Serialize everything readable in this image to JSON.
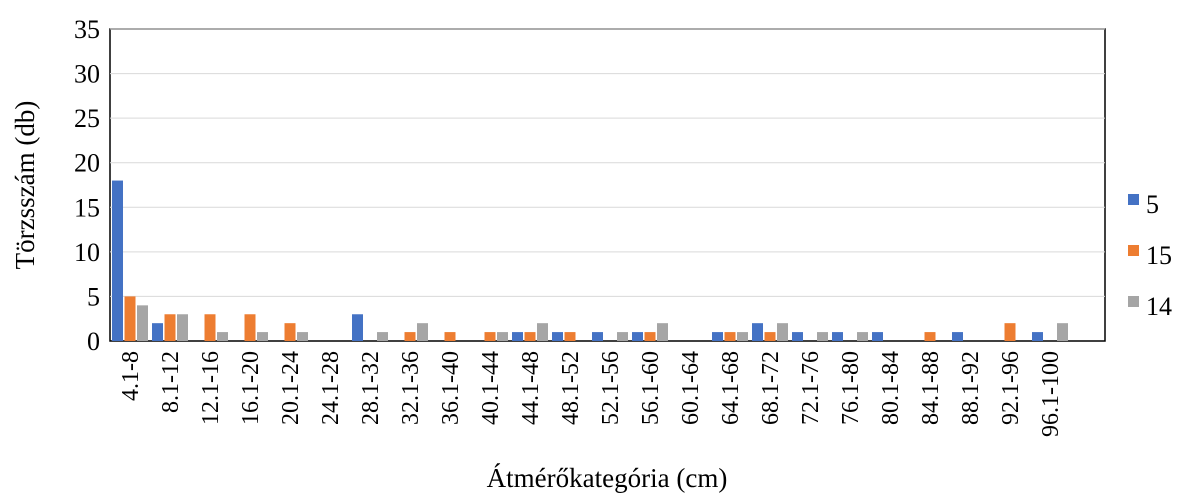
{
  "chart_data": {
    "type": "bar",
    "title": "",
    "xlabel": "Átmérőkategória (cm)",
    "ylabel": "Törzsszám (db)",
    "ylim": [
      0,
      35
    ],
    "yticks": [
      0,
      5,
      10,
      15,
      20,
      25,
      30,
      35
    ],
    "grid": "horizontal",
    "legend_position": "right",
    "categories": [
      "4.1-8",
      "8.1-12",
      "12.1-16",
      "16.1-20",
      "20.1-24",
      "24.1-28",
      "28.1-32",
      "32.1-36",
      "36.1-40",
      "40.1-44",
      "44.1-48",
      "48.1-52",
      "52.1-56",
      "56.1-60",
      "60.1-64",
      "64.1-68",
      "68.1-72",
      "72.1-76",
      "76.1-80",
      "80.1-84",
      "84.1-88",
      "88.1-92",
      "92.1-96",
      "96.1-100"
    ],
    "series": [
      {
        "name": "5",
        "color": "#4472C4",
        "values": [
          18,
          2,
          0,
          0,
          0,
          0,
          3,
          0,
          0,
          0,
          1,
          1,
          1,
          1,
          0,
          1,
          2,
          1,
          1,
          1,
          0,
          1,
          0,
          1
        ]
      },
      {
        "name": "15",
        "color": "#ED7D31",
        "values": [
          5,
          3,
          3,
          3,
          2,
          0,
          0,
          1,
          1,
          1,
          1,
          1,
          0,
          1,
          0,
          1,
          1,
          0,
          0,
          0,
          1,
          0,
          2,
          0
        ]
      },
      {
        "name": "14",
        "color": "#A5A5A5",
        "values": [
          4,
          3,
          1,
          1,
          1,
          0,
          1,
          2,
          0,
          1,
          2,
          0,
          1,
          2,
          0,
          1,
          2,
          1,
          1,
          0,
          0,
          0,
          0,
          2
        ]
      }
    ]
  }
}
